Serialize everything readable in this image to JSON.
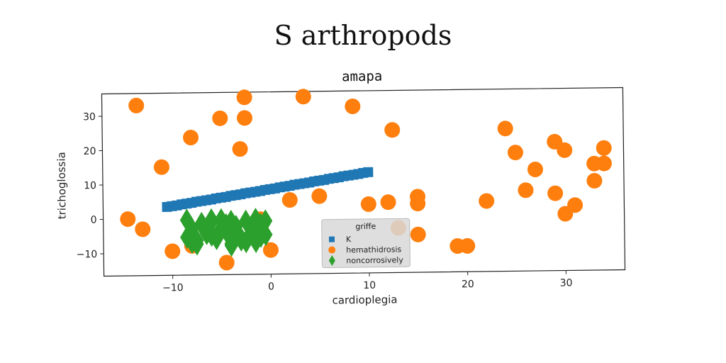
{
  "figure": {
    "suptitle": "S arthropods"
  },
  "chart_data": {
    "type": "scatter",
    "title": "amapa",
    "xlabel": "cardioplegia",
    "ylabel": "trichoglossia",
    "xlim": [
      -17,
      36
    ],
    "ylim": [
      -16.5,
      36.5
    ],
    "xticks": [
      -10,
      0,
      10,
      20,
      30
    ],
    "yticks": [
      -10,
      0,
      10,
      20,
      30
    ],
    "grid": false,
    "legend": {
      "title": "griffe",
      "placement": "lower-center"
    },
    "series": [
      {
        "name": "K",
        "marker": "square",
        "color": "#1f77b4",
        "x": [
          -10.5,
          -10,
          -9.5,
          -9,
          -8.5,
          -8,
          -7.5,
          -7,
          -6.5,
          -6,
          -5.5,
          -5,
          -4.5,
          -4,
          -3.5,
          -3,
          -2.5,
          -2,
          -1.5,
          -1,
          -0.5,
          0,
          0.5,
          1,
          1.5,
          2,
          2.5,
          3,
          3.5,
          4,
          4.5,
          5,
          5.5,
          6,
          6.5,
          7,
          7.5,
          8,
          8.5,
          9,
          9.5,
          10
        ],
        "y": [
          3.4,
          3.6,
          3.8,
          4.1,
          4.3,
          4.5,
          4.8,
          5.0,
          5.2,
          5.4,
          5.7,
          5.9,
          6.1,
          6.4,
          6.6,
          6.8,
          7.1,
          7.3,
          7.5,
          7.7,
          8.0,
          8.2,
          8.4,
          8.7,
          8.9,
          9.1,
          9.4,
          9.6,
          9.8,
          10.0,
          10.3,
          10.5,
          10.7,
          11.0,
          11.2,
          11.4,
          11.7,
          11.9,
          12.1,
          12.3,
          12.6,
          12.8
        ]
      },
      {
        "name": "hemathidrosis",
        "marker": "circle",
        "color": "#ff7f0e",
        "x": [
          -13.5,
          -14.5,
          -13,
          -11,
          -8,
          -10,
          -5,
          -2.5,
          -2.5,
          3.5,
          8.5,
          -3,
          12.5,
          -1,
          0,
          2,
          5,
          10,
          12,
          15,
          15,
          13,
          15,
          22,
          19,
          20,
          24,
          25,
          26,
          27,
          29,
          30,
          29,
          31,
          30,
          33,
          33,
          34,
          34,
          -8,
          -4.5
        ],
        "y": [
          33,
          0,
          -3,
          15,
          23.5,
          -9.5,
          29,
          35,
          29,
          35,
          32,
          20,
          25,
          -0.5,
          -9.5,
          5,
          6,
          3.5,
          4,
          5.5,
          3.5,
          -3.5,
          -5.5,
          4,
          -9,
          -9,
          25,
          18,
          7,
          13,
          21,
          18.5,
          6,
          2.5,
          0,
          9.5,
          14.5,
          14.5,
          19,
          -8,
          -13
        ]
      },
      {
        "name": "noncorrosively",
        "marker": "diamond",
        "color": "#2ca02c",
        "x": [
          -8.5,
          -8,
          -7.5,
          -7,
          -6.5,
          -6,
          -5.5,
          -5,
          -4.5,
          -4,
          -3.5,
          -3,
          -2.5,
          -2,
          -1.5,
          -1,
          -0.5,
          -8,
          -7,
          -6,
          -5,
          -4,
          -3,
          -2,
          -1,
          -0.5,
          -8.5,
          -7.5,
          -6.5,
          -5.5,
          -4.5,
          -3.5,
          -2.5,
          -1.5,
          -1,
          -6,
          -4
        ],
        "y": [
          -0.5,
          -3,
          -6.5,
          -2,
          -4.5,
          -1,
          -6,
          -0.5,
          -4,
          -7.5,
          -2.5,
          -6.5,
          -1,
          -4.5,
          -7,
          -2,
          -5,
          -7,
          -1.5,
          -5,
          -3,
          -1,
          -6,
          -3,
          -5.5,
          -1,
          -5.5,
          -7.5,
          -3,
          -5.5,
          -2,
          -4,
          -7,
          -0.5,
          -3.5,
          -0.5,
          -8
        ]
      }
    ]
  }
}
